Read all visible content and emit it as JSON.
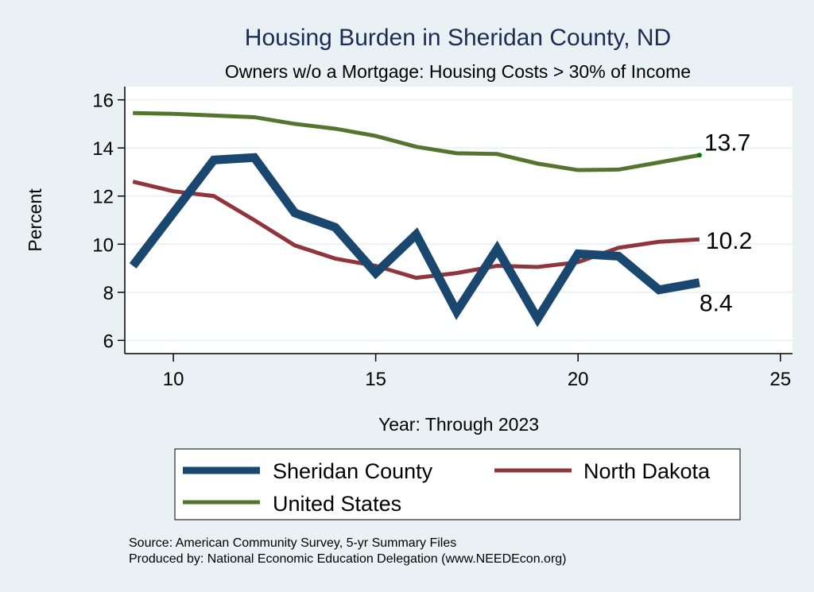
{
  "chart_data": {
    "type": "line",
    "title": "Housing Burden in Sheridan County, ND",
    "subtitle": "Owners w/o a Mortgage: Housing Costs > 30% of Income",
    "xlabel": "Year: Through 2023",
    "ylabel": "Percent",
    "xlim": [
      8.8,
      25.3
    ],
    "ylim": [
      5.45,
      16.55
    ],
    "xticks": [
      10,
      15,
      20,
      25
    ],
    "yticks": [
      6,
      8,
      10,
      12,
      14,
      16
    ],
    "grid": true,
    "legend_position": "bottom",
    "x": [
      9,
      10,
      11,
      12,
      13,
      14,
      15,
      16,
      17,
      18,
      19,
      20,
      21,
      22,
      23
    ],
    "series": [
      {
        "name": "Sheridan County",
        "color": "#1a476f",
        "values": [
          9.1,
          11.3,
          13.5,
          13.6,
          11.3,
          10.7,
          8.8,
          10.4,
          7.2,
          9.8,
          6.9,
          9.6,
          9.5,
          8.1,
          8.4
        ],
        "end_label": "8.4"
      },
      {
        "name": "North Dakota",
        "color": "#90353b",
        "values": [
          12.6,
          12.2,
          12.0,
          11.0,
          9.95,
          9.4,
          9.1,
          8.6,
          8.8,
          9.1,
          9.05,
          9.25,
          9.85,
          10.1,
          10.2
        ],
        "end_label": "10.2"
      },
      {
        "name": "United States",
        "color": "#55752f",
        "values": [
          15.45,
          15.42,
          15.35,
          15.28,
          15.0,
          14.8,
          14.5,
          14.05,
          13.78,
          13.75,
          13.35,
          13.08,
          13.1,
          13.4,
          13.7
        ],
        "end_label": "13.7",
        "end_marker_color": "#008000"
      }
    ]
  },
  "notes": {
    "source": "Source: American Community Survey, 5-yr Summary Files",
    "producer": "Produced by: National Economic Education Delegation (www.NEEDEcon.org)"
  },
  "colors": {
    "background": "#e9f1f4",
    "plot_background": "#ffffff",
    "gridline": "#eaf2f3",
    "title": "#1b2d54"
  }
}
